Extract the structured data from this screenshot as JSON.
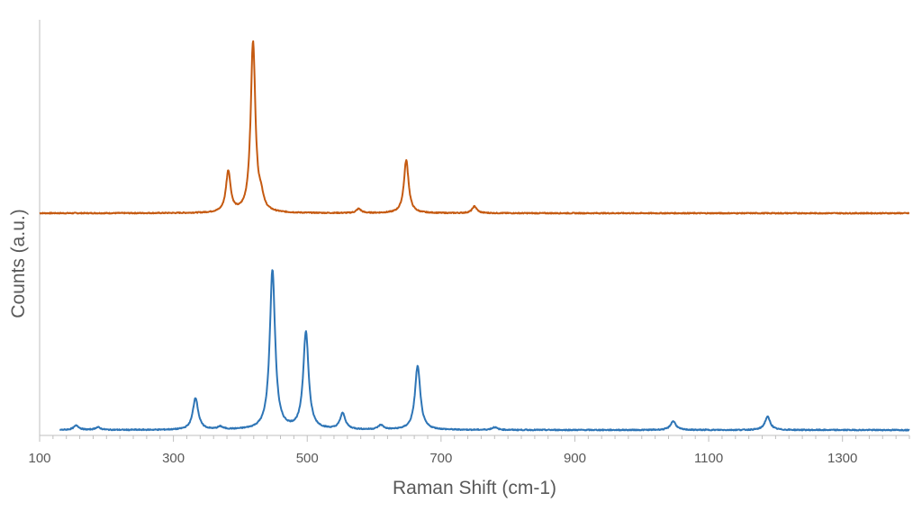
{
  "chart_data": {
    "type": "line",
    "xlabel": "Raman Shift (cm-1)",
    "ylabel": "Counts (a.u.)",
    "xlim": [
      100,
      1400
    ],
    "xticks": [
      100,
      300,
      500,
      700,
      900,
      1100,
      1300
    ],
    "xtick_labels": [
      "100",
      "300",
      "500",
      "700",
      "900",
      "1100",
      "1300"
    ],
    "yticks_shown": false,
    "grid": false,
    "legend": "none",
    "offset_stacked": true,
    "series": [
      {
        "color": "#c55a11",
        "x_range": [
          100,
          1400
        ],
        "baseline": 0,
        "peaks": [
          {
            "x": 382,
            "height": 0.24
          },
          {
            "x": 419,
            "height": 1.0
          },
          {
            "x": 431,
            "height": 0.07
          },
          {
            "x": 577,
            "height": 0.025
          },
          {
            "x": 648,
            "height": 0.31
          },
          {
            "x": 750,
            "height": 0.04
          }
        ]
      },
      {
        "color": "#2e75b6",
        "x_range": [
          130,
          1400
        ],
        "baseline": 0,
        "peaks": [
          {
            "x": 155,
            "height": 0.025
          },
          {
            "x": 187,
            "height": 0.015
          },
          {
            "x": 333,
            "height": 0.18
          },
          {
            "x": 370,
            "height": 0.015
          },
          {
            "x": 448,
            "height": 0.9
          },
          {
            "x": 498,
            "height": 0.55
          },
          {
            "x": 553,
            "height": 0.09
          },
          {
            "x": 610,
            "height": 0.025
          },
          {
            "x": 665,
            "height": 0.36
          },
          {
            "x": 780,
            "height": 0.015
          },
          {
            "x": 1047,
            "height": 0.05
          },
          {
            "x": 1188,
            "height": 0.075
          }
        ]
      }
    ]
  },
  "colors": {
    "axis": "#bfbfbf",
    "text": "#595959",
    "series_top": "#c55a11",
    "series_bottom": "#2e75b6"
  }
}
